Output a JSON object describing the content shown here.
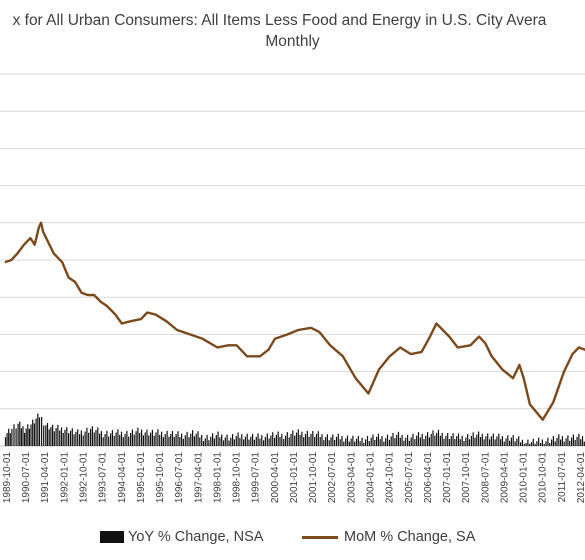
{
  "chart_data": {
    "type": "line",
    "title_lines": [
      "x for All Urban Consumers: All Items Less Food and Energy in U.S. City Avera",
      "Monthly"
    ],
    "x_tick_labels": [
      "1989-10-01",
      "1990-07-01",
      "1991-04-01",
      "1992-01-01",
      "1992-10-01",
      "1993-07-01",
      "1994-04-01",
      "1995-01-01",
      "1995-10-01",
      "1996-07-01",
      "1997-04-01",
      "1998-01-01",
      "1998-10-01",
      "1999-07-01",
      "2000-04-01",
      "2001-01-01",
      "2001-10-01",
      "2002-07-01",
      "2003-04-01",
      "2004-01-01",
      "2004-10-01",
      "2005-07-01",
      "2006-04-01",
      "2007-01-01",
      "2007-10-01",
      "2008-07-01",
      "2009-04-01",
      "2010-01-01",
      "2010-10-01",
      "2011-07-01",
      "2012-04-01"
    ],
    "grid": "horizontal",
    "legend_position": "bottom",
    "series": [
      {
        "name": "YoY % Change, NSA",
        "type": "bar",
        "color": "#111111",
        "points": [
          [
            "1989-09-01",
            0.3
          ],
          [
            "1989-12-01",
            0.4
          ],
          [
            "1990-03-01",
            0.5
          ],
          [
            "1990-06-01",
            0.4
          ],
          [
            "1990-09-01",
            0.5
          ],
          [
            "1991-01-01",
            0.7
          ],
          [
            "1991-04-01",
            0.5
          ],
          [
            "1991-08-01",
            0.4
          ],
          [
            "1992-01-01",
            0.4
          ],
          [
            "1992-07-01",
            0.3
          ],
          [
            "1993-01-01",
            0.4
          ],
          [
            "1993-07-01",
            0.3
          ],
          [
            "1994-01-01",
            0.3
          ],
          [
            "1994-07-01",
            0.3
          ],
          [
            "1995-01-01",
            0.35
          ],
          [
            "1995-07-01",
            0.3
          ],
          [
            "1996-01-01",
            0.3
          ],
          [
            "1996-07-01",
            0.25
          ],
          [
            "1997-01-01",
            0.3
          ],
          [
            "1997-07-01",
            0.2
          ],
          [
            "1998-01-01",
            0.25
          ],
          [
            "1998-07-01",
            0.2
          ],
          [
            "1999-01-01",
            0.25
          ],
          [
            "1999-07-01",
            0.2
          ],
          [
            "2000-01-01",
            0.25
          ],
          [
            "2000-07-01",
            0.25
          ],
          [
            "2001-01-01",
            0.3
          ],
          [
            "2001-07-01",
            0.3
          ],
          [
            "2002-01-01",
            0.25
          ],
          [
            "2002-07-01",
            0.2
          ],
          [
            "2003-01-01",
            0.2
          ],
          [
            "2003-07-01",
            0.15
          ],
          [
            "2004-01-01",
            0.2
          ],
          [
            "2004-07-01",
            0.2
          ],
          [
            "2005-01-01",
            0.25
          ],
          [
            "2005-07-01",
            0.2
          ],
          [
            "2006-01-01",
            0.25
          ],
          [
            "2006-07-01",
            0.3
          ],
          [
            "2007-01-01",
            0.25
          ],
          [
            "2007-07-01",
            0.2
          ],
          [
            "2008-01-01",
            0.25
          ],
          [
            "2008-07-01",
            0.25
          ],
          [
            "2009-01-01",
            0.2
          ],
          [
            "2009-07-01",
            0.2
          ],
          [
            "2010-01-01",
            0.1
          ],
          [
            "2010-07-01",
            0.1
          ],
          [
            "2011-01-01",
            0.15
          ],
          [
            "2011-07-01",
            0.2
          ],
          [
            "2012-01-01",
            0.2
          ],
          [
            "2012-07-01",
            0.2
          ]
        ]
      },
      {
        "name": "MoM % Change, SA",
        "type": "line",
        "color": "#7b4a1c",
        "points": [
          [
            "1989-09-01",
            4.2
          ],
          [
            "1989-12-01",
            4.25
          ],
          [
            "1990-03-01",
            4.4
          ],
          [
            "1990-06-01",
            4.6
          ],
          [
            "1990-09-01",
            4.75
          ],
          [
            "1990-11-01",
            4.6
          ],
          [
            "1991-01-01",
            5.0
          ],
          [
            "1991-02-01",
            5.1
          ],
          [
            "1991-03-01",
            4.9
          ],
          [
            "1991-05-01",
            4.7
          ],
          [
            "1991-08-01",
            4.4
          ],
          [
            "1991-12-01",
            4.2
          ],
          [
            "1992-03-01",
            3.85
          ],
          [
            "1992-06-01",
            3.75
          ],
          [
            "1992-09-01",
            3.5
          ],
          [
            "1992-12-01",
            3.45
          ],
          [
            "1993-03-01",
            3.45
          ],
          [
            "1993-06-01",
            3.3
          ],
          [
            "1993-09-01",
            3.2
          ],
          [
            "1994-01-01",
            3.0
          ],
          [
            "1994-04-01",
            2.8
          ],
          [
            "1994-08-01",
            2.85
          ],
          [
            "1995-01-01",
            2.9
          ],
          [
            "1995-04-01",
            3.05
          ],
          [
            "1995-08-01",
            3.0
          ],
          [
            "1996-01-01",
            2.85
          ],
          [
            "1996-06-01",
            2.65
          ],
          [
            "1996-12-01",
            2.55
          ],
          [
            "1997-06-01",
            2.45
          ],
          [
            "1998-01-01",
            2.25
          ],
          [
            "1998-06-01",
            2.3
          ],
          [
            "1998-10-01",
            2.3
          ],
          [
            "1999-03-01",
            2.05
          ],
          [
            "1999-09-01",
            2.05
          ],
          [
            "2000-01-01",
            2.2
          ],
          [
            "2000-04-01",
            2.45
          ],
          [
            "2000-10-01",
            2.55
          ],
          [
            "2001-03-01",
            2.65
          ],
          [
            "2001-09-01",
            2.7
          ],
          [
            "2002-01-01",
            2.6
          ],
          [
            "2002-06-01",
            2.3
          ],
          [
            "2002-12-01",
            2.05
          ],
          [
            "2003-06-01",
            1.55
          ],
          [
            "2003-12-01",
            1.2
          ],
          [
            "2004-05-01",
            1.75
          ],
          [
            "2004-10-01",
            2.05
          ],
          [
            "2005-03-01",
            2.25
          ],
          [
            "2005-08-01",
            2.1
          ],
          [
            "2006-01-01",
            2.15
          ],
          [
            "2006-05-01",
            2.5
          ],
          [
            "2006-08-01",
            2.8
          ],
          [
            "2006-10-01",
            2.7
          ],
          [
            "2007-02-01",
            2.5
          ],
          [
            "2007-06-01",
            2.25
          ],
          [
            "2007-12-01",
            2.3
          ],
          [
            "2008-04-01",
            2.5
          ],
          [
            "2008-07-01",
            2.35
          ],
          [
            "2008-10-01",
            2.05
          ],
          [
            "2009-03-01",
            1.75
          ],
          [
            "2009-08-01",
            1.55
          ],
          [
            "2009-11-01",
            1.85
          ],
          [
            "2010-01-01",
            1.55
          ],
          [
            "2010-04-01",
            0.95
          ],
          [
            "2010-10-01",
            0.6
          ],
          [
            "2011-03-01",
            1.0
          ],
          [
            "2011-08-01",
            1.7
          ],
          [
            "2011-12-01",
            2.1
          ],
          [
            "2012-03-01",
            2.25
          ],
          [
            "2012-06-01",
            2.2
          ],
          [
            "2012-09-01",
            1.95
          ]
        ]
      }
    ]
  }
}
